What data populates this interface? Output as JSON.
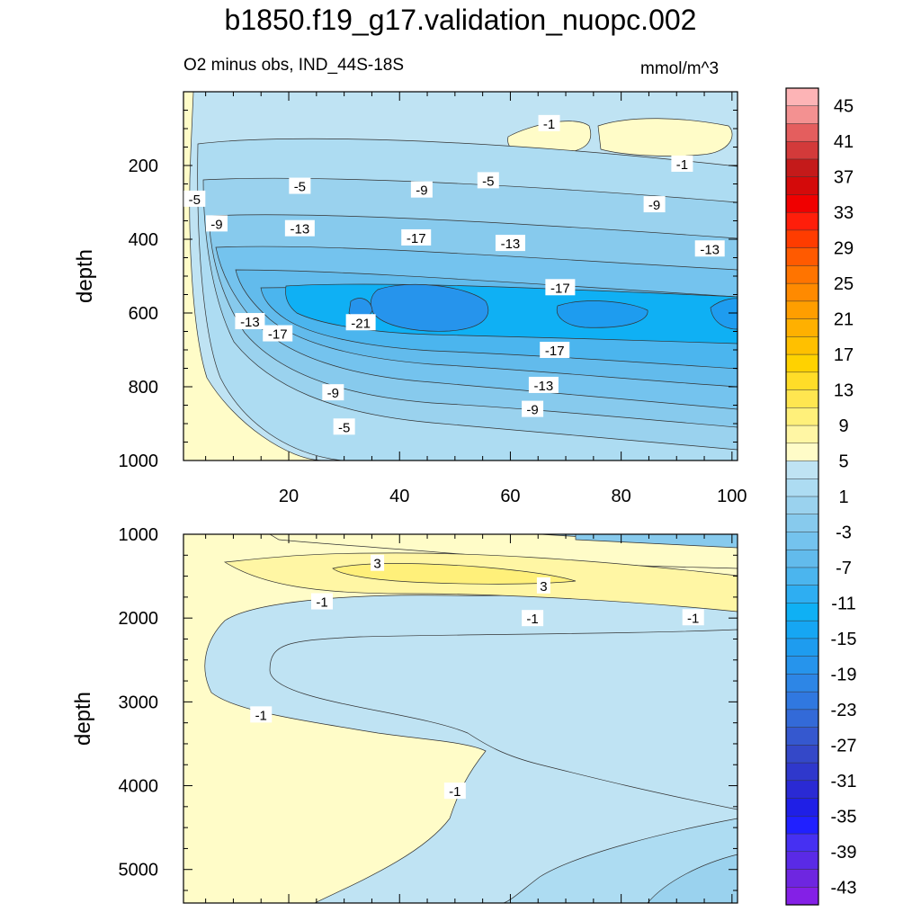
{
  "title": "b1850.f19_g17.validation_nuopc.002",
  "subtitle_left": "O2 minus obs, IND_44S-18S",
  "subtitle_right": "mmol/m^3",
  "colors": {
    "pos_low": "#fffcc8",
    "neg_light": "#bfe3f3",
    "neg_mid": "#9ad2ee",
    "neg_deep": "#62bbec",
    "neg_core": "#0fb0f4",
    "neg_min": "#2694ec"
  },
  "chart_data": [
    {
      "type": "heatmap",
      "panel": "upper",
      "ylabel": "depth",
      "xlim": [
        1,
        101
      ],
      "ylim": [
        0,
        1000
      ],
      "y_inverted": true,
      "xticks": [
        20,
        40,
        60,
        80,
        100
      ],
      "yticks": [
        200,
        400,
        600,
        800,
        1000
      ],
      "contour_labels": [
        {
          "text": "-1",
          "x": 67,
          "y": 85
        },
        {
          "text": "-1",
          "x": 91,
          "y": 195
        },
        {
          "text": "-5",
          "x": 3,
          "y": 290
        },
        {
          "text": "-5",
          "x": 22,
          "y": 255
        },
        {
          "text": "-5",
          "x": 56,
          "y": 240
        },
        {
          "text": "-9",
          "x": 7,
          "y": 357
        },
        {
          "text": "-9",
          "x": 44,
          "y": 265
        },
        {
          "text": "-9",
          "x": 86,
          "y": 305
        },
        {
          "text": "-13",
          "x": 22,
          "y": 370
        },
        {
          "text": "-13",
          "x": 60,
          "y": 410
        },
        {
          "text": "-13",
          "x": 96,
          "y": 425
        },
        {
          "text": "-13",
          "x": 13,
          "y": 622
        },
        {
          "text": "-17",
          "x": 43,
          "y": 395
        },
        {
          "text": "-17",
          "x": 69,
          "y": 530
        },
        {
          "text": "-17",
          "x": 18,
          "y": 655
        },
        {
          "text": "-17",
          "x": 68,
          "y": 700
        },
        {
          "text": "-21",
          "x": 33,
          "y": 625
        },
        {
          "text": "-13",
          "x": 66,
          "y": 795
        },
        {
          "text": "-9",
          "x": 28,
          "y": 815
        },
        {
          "text": "-9",
          "x": 64,
          "y": 860
        },
        {
          "text": "-5",
          "x": 30,
          "y": 908
        }
      ]
    },
    {
      "type": "heatmap",
      "panel": "lower",
      "ylabel": "depth",
      "xlim": [
        1,
        101
      ],
      "ylim": [
        1000,
        5400
      ],
      "y_inverted": true,
      "yticks": [
        1000,
        2000,
        3000,
        4000,
        5000
      ],
      "contour_labels": [
        {
          "text": "3",
          "x": 36,
          "y": 1340
        },
        {
          "text": "3",
          "x": 66,
          "y": 1610
        },
        {
          "text": "-1",
          "x": 26,
          "y": 1800
        },
        {
          "text": "-1",
          "x": 64,
          "y": 2000
        },
        {
          "text": "-1",
          "x": 93,
          "y": 1990
        },
        {
          "text": "-1",
          "x": 15,
          "y": 3150
        },
        {
          "text": "-1",
          "x": 50,
          "y": 4060
        }
      ]
    }
  ],
  "colorbar": {
    "labels": [
      "45",
      "41",
      "37",
      "33",
      "29",
      "25",
      "21",
      "17",
      "13",
      "9",
      "5",
      "1",
      "-3",
      "-7",
      "-11",
      "-15",
      "-19",
      "-23",
      "-27",
      "-31",
      "-35",
      "-39",
      "-43"
    ],
    "colors": [
      "#fdb4b6",
      "#f39191",
      "#e45e5e",
      "#d33a3a",
      "#c41a1a",
      "#d40a0a",
      "#f00000",
      "#ff1e0a",
      "#ff3c00",
      "#ff5a00",
      "#ff7400",
      "#ff8a00",
      "#ff9e00",
      "#ffb000",
      "#ffc000",
      "#ffd200",
      "#ffdd28",
      "#ffe650",
      "#fff07a",
      "#fff6a4",
      "#fffcc8",
      "#bfe3f3",
      "#addcf2",
      "#9ad2ee",
      "#87caed",
      "#74c3ee",
      "#62bbec",
      "#4bb5ee",
      "#2eaef2",
      "#0fb0f4",
      "#16a6f3",
      "#1e9cef",
      "#2694ec",
      "#2d86e6",
      "#3078e0",
      "#336ad8",
      "#3558cf",
      "#3448c8",
      "#2f38cc",
      "#2a2ad4",
      "#1f1fe6",
      "#2020ff",
      "#4630f2",
      "#5a2ae6",
      "#6e26e0",
      "#8420e6"
    ]
  }
}
